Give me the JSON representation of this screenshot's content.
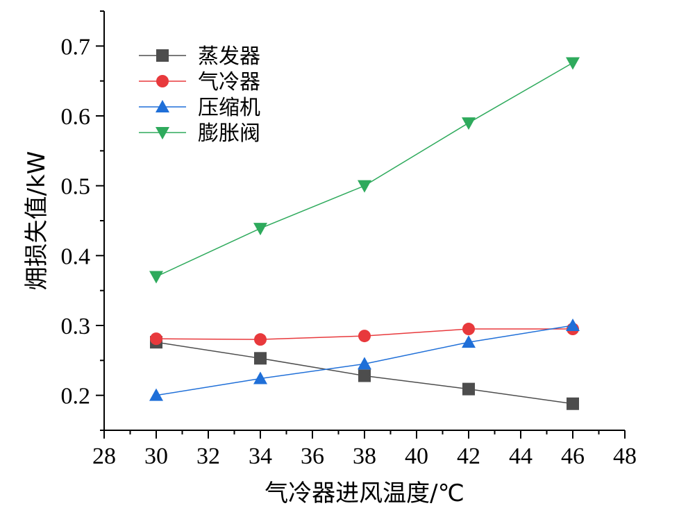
{
  "chart_data": {
    "type": "line",
    "xlabel": "气冷器进风温度/℃",
    "ylabel": "㶲损失值/kW",
    "xlim": [
      28,
      48
    ],
    "ylim": [
      0.15,
      0.75
    ],
    "x_ticks": [
      28,
      30,
      32,
      34,
      36,
      38,
      40,
      42,
      44,
      46,
      48
    ],
    "x_tick_labels": [
      "28",
      "30",
      "32",
      "34",
      "36",
      "38",
      "40",
      "42",
      "44",
      "46",
      "48"
    ],
    "y_ticks": [
      0.2,
      0.3,
      0.4,
      0.5,
      0.6,
      0.7
    ],
    "y_tick_labels": [
      "0.2",
      "0.3",
      "0.4",
      "0.5",
      "0.6",
      "0.7"
    ],
    "grid": false,
    "legend_position": "top-left",
    "x": [
      30,
      34,
      38,
      42,
      46
    ],
    "series": [
      {
        "name": "蒸发器",
        "values": [
          0.276,
          0.253,
          0.228,
          0.209,
          0.188
        ],
        "color": "#4d4d4d",
        "marker": "square"
      },
      {
        "name": "气冷器",
        "values": [
          0.281,
          0.28,
          0.285,
          0.295,
          0.295
        ],
        "color": "#e8393c",
        "marker": "circle"
      },
      {
        "name": "压缩机",
        "values": [
          0.2,
          0.224,
          0.245,
          0.276,
          0.3
        ],
        "color": "#1f6fd8",
        "marker": "triangle-up"
      },
      {
        "name": "膨胀阀",
        "values": [
          0.37,
          0.439,
          0.5,
          0.59,
          0.676
        ],
        "color": "#2eaa5c",
        "marker": "triangle-down"
      }
    ]
  }
}
